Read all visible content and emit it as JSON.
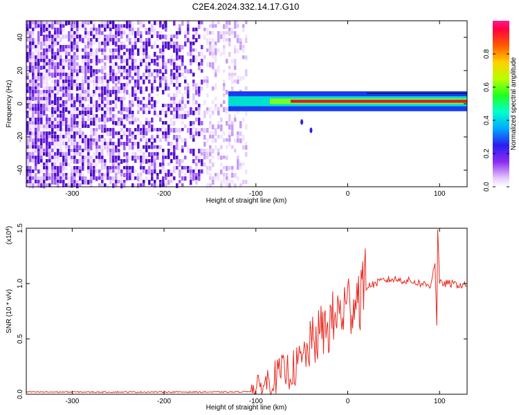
{
  "page_title": "C2E4.2024.332.14.17.G10",
  "colors": {
    "axis": "#000000",
    "snr_line": "#e8281e",
    "signal_band_core": "#e0143c",
    "noise_purple": "#6a1ee8"
  },
  "chart_data": [
    {
      "type": "heatmap",
      "name": "spectrogram",
      "title": "C2E4.2024.332.14.17.G10",
      "xlabel": "Height of straight line (km)",
      "ylabel": "Frequency (Hz)",
      "xlim": [
        -350,
        130
      ],
      "ylim": [
        -50,
        50
      ],
      "x_ticks": [
        -300,
        -200,
        -100,
        0,
        100
      ],
      "x_tick_labels": [
        "-300",
        "-200",
        "-100",
        "0",
        "100"
      ],
      "y_ticks": [
        -40,
        -20,
        0,
        20,
        40
      ],
      "y_tick_labels": [
        "-40",
        "-20",
        "0",
        "20",
        "40"
      ],
      "colorbar": {
        "label": "Normalized spectral amplitude",
        "range": [
          0.0,
          1.0
        ],
        "ticks": [
          0.0,
          0.2,
          0.4,
          0.6,
          0.8
        ],
        "tick_labels": [
          "0.0",
          "0.2",
          "0.4",
          "0.6",
          "0.8"
        ],
        "colormap": "rainbow (white-purple-blue-cyan-green-yellow-red-magenta)"
      },
      "noise_region_x": [
        -350,
        -110
      ],
      "signal_band": {
        "start_x": -130,
        "center_freq_hz": 1.5,
        "half_width_hz": 3
      },
      "artifacts": [
        {
          "x": -50,
          "freq_hz": -11
        },
        {
          "x": -40,
          "freq_hz": -16
        }
      ]
    },
    {
      "type": "line",
      "name": "snr",
      "xlabel": "Height of straight line (km)",
      "ylabel": "SNR (10 * v/v)",
      "y_multiplier": "(x10^4)",
      "multiplier_base": "(x10",
      "multiplier_exp": "4",
      "multiplier_close": ")",
      "xlim": [
        -350,
        130
      ],
      "ylim": [
        0.0,
        1.5
      ],
      "x_ticks": [
        -300,
        -200,
        -100,
        0,
        100
      ],
      "x_tick_labels": [
        "-300",
        "-200",
        "-100",
        "0",
        "100"
      ],
      "y_ticks": [
        0.0,
        0.5,
        1.0,
        1.5
      ],
      "y_tick_labels": [
        "0.0",
        "0.5",
        "1.0",
        "1.5"
      ],
      "series": [
        {
          "color": "#e8281e",
          "x": [
            -350,
            -300,
            -200,
            -120,
            -100,
            -90,
            -80,
            -70,
            -60,
            -50,
            -40,
            -30,
            -20,
            -10,
            0,
            10,
            20,
            30,
            40,
            50,
            60,
            70,
            80,
            90,
            95,
            97,
            98,
            100,
            110,
            120,
            130
          ],
          "y": [
            0.02,
            0.02,
            0.02,
            0.02,
            0.03,
            0.1,
            0.15,
            0.2,
            0.22,
            0.3,
            0.45,
            0.55,
            0.62,
            0.72,
            0.8,
            0.9,
            0.97,
            1.0,
            1.03,
            1.04,
            1.03,
            1.02,
            1.0,
            0.98,
            1.2,
            0.6,
            1.5,
            1.0,
            1.0,
            0.99,
            0.98
          ]
        }
      ]
    }
  ]
}
